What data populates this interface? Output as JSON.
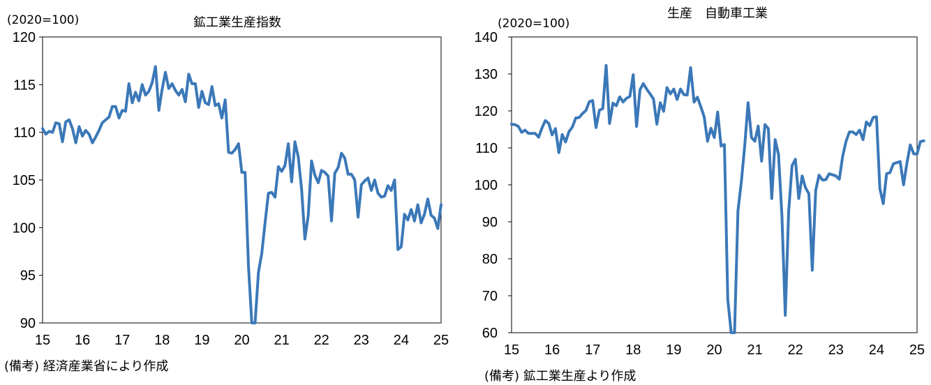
{
  "chart_data": [
    {
      "type": "line",
      "title": "鉱工業生産指数",
      "unit_label": "(2020=100)",
      "note": "(備考) 経済産業省により作成",
      "color": "#3b78b8",
      "ylim": [
        90,
        120
      ],
      "y_ticks": [
        "120",
        "115",
        "110",
        "105",
        "100",
        "95",
        "90"
      ],
      "x_ticks": [
        "15",
        "16",
        "17",
        "18",
        "19",
        "20",
        "21",
        "22",
        "23",
        "24",
        "25"
      ],
      "xlim": [
        2015.0,
        2025.0
      ],
      "points": [
        [
          2015.0,
          110.4
        ],
        [
          2015.083,
          109.8
        ],
        [
          2015.167,
          110.1
        ],
        [
          2015.25,
          110.0
        ],
        [
          2015.333,
          111.0
        ],
        [
          2015.417,
          110.9
        ],
        [
          2015.5,
          109.0
        ],
        [
          2015.583,
          111.1
        ],
        [
          2015.667,
          111.3
        ],
        [
          2015.75,
          110.4
        ],
        [
          2015.833,
          108.9
        ],
        [
          2015.917,
          110.6
        ],
        [
          2016.0,
          109.6
        ],
        [
          2016.083,
          110.2
        ],
        [
          2016.167,
          109.8
        ],
        [
          2016.25,
          108.9
        ],
        [
          2016.333,
          109.5
        ],
        [
          2016.417,
          110.2
        ],
        [
          2016.5,
          111.0
        ],
        [
          2016.583,
          111.3
        ],
        [
          2016.667,
          111.6
        ],
        [
          2016.75,
          112.7
        ],
        [
          2016.833,
          112.7
        ],
        [
          2016.917,
          111.5
        ],
        [
          2017.0,
          112.3
        ],
        [
          2017.083,
          112.2
        ],
        [
          2017.167,
          115.1
        ],
        [
          2017.25,
          113.1
        ],
        [
          2017.333,
          114.2
        ],
        [
          2017.417,
          113.3
        ],
        [
          2017.5,
          115.0
        ],
        [
          2017.583,
          113.9
        ],
        [
          2017.667,
          114.3
        ],
        [
          2017.75,
          115.2
        ],
        [
          2017.833,
          116.9
        ],
        [
          2017.917,
          112.3
        ],
        [
          2018.0,
          114.5
        ],
        [
          2018.083,
          116.3
        ],
        [
          2018.167,
          114.6
        ],
        [
          2018.25,
          115.1
        ],
        [
          2018.333,
          114.4
        ],
        [
          2018.417,
          113.9
        ],
        [
          2018.5,
          114.5
        ],
        [
          2018.583,
          113.2
        ],
        [
          2018.667,
          116.1
        ],
        [
          2018.75,
          115.1
        ],
        [
          2018.833,
          115.1
        ],
        [
          2018.917,
          112.6
        ],
        [
          2019.0,
          114.3
        ],
        [
          2019.083,
          113.1
        ],
        [
          2019.167,
          112.9
        ],
        [
          2019.25,
          114.8
        ],
        [
          2019.333,
          112.8
        ],
        [
          2019.417,
          113.0
        ],
        [
          2019.5,
          111.5
        ],
        [
          2019.583,
          113.4
        ],
        [
          2019.667,
          107.9
        ],
        [
          2019.75,
          107.8
        ],
        [
          2019.833,
          108.2
        ],
        [
          2019.917,
          108.8
        ],
        [
          2020.0,
          105.8
        ],
        [
          2020.083,
          105.8
        ],
        [
          2020.167,
          96.0
        ],
        [
          2020.25,
          90.0
        ],
        [
          2020.333,
          90.0
        ],
        [
          2020.417,
          95.3
        ],
        [
          2020.5,
          97.3
        ],
        [
          2020.583,
          100.5
        ],
        [
          2020.667,
          103.6
        ],
        [
          2020.75,
          103.7
        ],
        [
          2020.833,
          103.2
        ],
        [
          2020.917,
          106.4
        ],
        [
          2021.0,
          105.9
        ],
        [
          2021.083,
          106.5
        ],
        [
          2021.167,
          108.8
        ],
        [
          2021.25,
          104.8
        ],
        [
          2021.333,
          109.0
        ],
        [
          2021.417,
          107.4
        ],
        [
          2021.5,
          104.0
        ],
        [
          2021.583,
          98.8
        ],
        [
          2021.667,
          101.3
        ],
        [
          2021.75,
          107.0
        ],
        [
          2021.833,
          105.5
        ],
        [
          2021.917,
          104.7
        ],
        [
          2022.0,
          106.0
        ],
        [
          2022.083,
          105.8
        ],
        [
          2022.167,
          105.4
        ],
        [
          2022.25,
          100.7
        ],
        [
          2022.333,
          105.7
        ],
        [
          2022.417,
          106.3
        ],
        [
          2022.5,
          107.8
        ],
        [
          2022.583,
          107.3
        ],
        [
          2022.667,
          105.6
        ],
        [
          2022.75,
          105.6
        ],
        [
          2022.833,
          105.0
        ],
        [
          2022.917,
          101.1
        ],
        [
          2023.0,
          104.5
        ],
        [
          2023.083,
          104.9
        ],
        [
          2023.167,
          105.2
        ],
        [
          2023.25,
          103.9
        ],
        [
          2023.333,
          105.0
        ],
        [
          2023.417,
          103.6
        ],
        [
          2023.5,
          103.2
        ],
        [
          2023.583,
          103.3
        ],
        [
          2023.667,
          104.4
        ],
        [
          2023.75,
          103.9
        ],
        [
          2023.833,
          105.0
        ],
        [
          2023.917,
          97.7
        ],
        [
          2024.0,
          98.0
        ],
        [
          2024.083,
          101.4
        ],
        [
          2024.167,
          100.8
        ],
        [
          2024.25,
          101.9
        ],
        [
          2024.333,
          100.7
        ],
        [
          2024.417,
          102.4
        ],
        [
          2024.5,
          100.5
        ],
        [
          2024.583,
          101.4
        ],
        [
          2024.667,
          103.0
        ],
        [
          2024.75,
          101.3
        ],
        [
          2024.833,
          101.0
        ],
        [
          2024.917,
          99.9
        ],
        [
          2025.0,
          102.4
        ]
      ]
    },
    {
      "type": "line",
      "title": "生産　自動車工業",
      "unit_label": "(2020=100)",
      "note": "(備考) 鉱工業生産より作成",
      "color": "#3b78b8",
      "ylim": [
        60,
        140
      ],
      "y_ticks": [
        "140",
        "130",
        "120",
        "110",
        "100",
        "90",
        "80",
        "70",
        "60"
      ],
      "x_ticks": [
        "15",
        "16",
        "17",
        "18",
        "19",
        "20",
        "21",
        "22",
        "23",
        "24",
        "25"
      ],
      "xlim": [
        2015.0,
        2025.0
      ],
      "points": [
        [
          2015.0,
          116.4
        ],
        [
          2015.083,
          116.3
        ],
        [
          2015.167,
          115.8
        ],
        [
          2015.25,
          114.2
        ],
        [
          2015.333,
          114.8
        ],
        [
          2015.417,
          113.9
        ],
        [
          2015.5,
          113.9
        ],
        [
          2015.583,
          113.9
        ],
        [
          2015.667,
          112.9
        ],
        [
          2015.75,
          115.4
        ],
        [
          2015.833,
          117.4
        ],
        [
          2015.917,
          116.6
        ],
        [
          2016.0,
          113.5
        ],
        [
          2016.083,
          115.2
        ],
        [
          2016.167,
          108.7
        ],
        [
          2016.25,
          113.6
        ],
        [
          2016.333,
          111.6
        ],
        [
          2016.417,
          114.4
        ],
        [
          2016.5,
          115.6
        ],
        [
          2016.583,
          118.1
        ],
        [
          2016.667,
          118.2
        ],
        [
          2016.75,
          119.3
        ],
        [
          2016.833,
          120.1
        ],
        [
          2016.917,
          122.5
        ],
        [
          2017.0,
          122.8
        ],
        [
          2017.083,
          115.5
        ],
        [
          2017.167,
          120.2
        ],
        [
          2017.25,
          120.6
        ],
        [
          2017.333,
          132.3
        ],
        [
          2017.417,
          116.6
        ],
        [
          2017.5,
          122.1
        ],
        [
          2017.583,
          121.4
        ],
        [
          2017.667,
          123.8
        ],
        [
          2017.75,
          122.4
        ],
        [
          2017.833,
          123.4
        ],
        [
          2017.917,
          123.9
        ],
        [
          2018.0,
          129.8
        ],
        [
          2018.083,
          115.8
        ],
        [
          2018.167,
          125.7
        ],
        [
          2018.25,
          127.4
        ],
        [
          2018.333,
          125.9
        ],
        [
          2018.417,
          124.6
        ],
        [
          2018.5,
          123.2
        ],
        [
          2018.583,
          116.4
        ],
        [
          2018.667,
          122.2
        ],
        [
          2018.75,
          119.9
        ],
        [
          2018.833,
          126.3
        ],
        [
          2018.917,
          124.6
        ],
        [
          2019.0,
          125.9
        ],
        [
          2019.083,
          123.1
        ],
        [
          2019.167,
          125.9
        ],
        [
          2019.25,
          124.4
        ],
        [
          2019.333,
          124.3
        ],
        [
          2019.417,
          131.7
        ],
        [
          2019.5,
          122.4
        ],
        [
          2019.583,
          123.7
        ],
        [
          2019.667,
          121.1
        ],
        [
          2019.75,
          118.4
        ],
        [
          2019.833,
          111.8
        ],
        [
          2019.917,
          115.3
        ],
        [
          2020.0,
          112.8
        ],
        [
          2020.083,
          119.7
        ],
        [
          2020.167,
          110.5
        ],
        [
          2020.25,
          110.9
        ],
        [
          2020.333,
          69.0
        ],
        [
          2020.417,
          60.0
        ],
        [
          2020.5,
          60.0
        ],
        [
          2020.583,
          93.0
        ],
        [
          2020.667,
          100.9
        ],
        [
          2020.75,
          110.6
        ],
        [
          2020.833,
          122.2
        ],
        [
          2020.917,
          112.8
        ],
        [
          2021.0,
          111.8
        ],
        [
          2021.083,
          115.9
        ],
        [
          2021.167,
          106.4
        ],
        [
          2021.25,
          116.3
        ],
        [
          2021.333,
          115.2
        ],
        [
          2021.417,
          96.3
        ],
        [
          2021.5,
          112.2
        ],
        [
          2021.583,
          108.2
        ],
        [
          2021.667,
          91.6
        ],
        [
          2021.75,
          64.7
        ],
        [
          2021.833,
          92.6
        ],
        [
          2021.917,
          105.2
        ],
        [
          2022.0,
          106.9
        ],
        [
          2022.083,
          96.3
        ],
        [
          2022.167,
          102.4
        ],
        [
          2022.25,
          99.2
        ],
        [
          2022.333,
          97.6
        ],
        [
          2022.417,
          76.9
        ],
        [
          2022.5,
          98.5
        ],
        [
          2022.583,
          102.6
        ],
        [
          2022.667,
          101.3
        ],
        [
          2022.75,
          101.4
        ],
        [
          2022.833,
          103.0
        ],
        [
          2022.917,
          102.7
        ],
        [
          2023.0,
          102.4
        ],
        [
          2023.083,
          101.5
        ],
        [
          2023.167,
          107.8
        ],
        [
          2023.25,
          111.8
        ],
        [
          2023.333,
          114.3
        ],
        [
          2023.417,
          114.3
        ],
        [
          2023.5,
          113.6
        ],
        [
          2023.583,
          114.8
        ],
        [
          2023.667,
          112.2
        ],
        [
          2023.75,
          117.0
        ],
        [
          2023.833,
          116.0
        ],
        [
          2023.917,
          118.2
        ],
        [
          2024.0,
          118.4
        ],
        [
          2024.083,
          99.0
        ],
        [
          2024.167,
          94.9
        ],
        [
          2024.25,
          103.0
        ],
        [
          2024.333,
          103.3
        ],
        [
          2024.417,
          105.7
        ],
        [
          2024.5,
          106.0
        ],
        [
          2024.583,
          106.3
        ],
        [
          2024.667,
          100.0
        ],
        [
          2024.75,
          105.9
        ],
        [
          2024.833,
          110.8
        ],
        [
          2024.917,
          108.4
        ],
        [
          2025.0,
          108.3
        ],
        [
          2025.083,
          111.7
        ],
        [
          2025.167,
          111.9
        ]
      ]
    }
  ]
}
